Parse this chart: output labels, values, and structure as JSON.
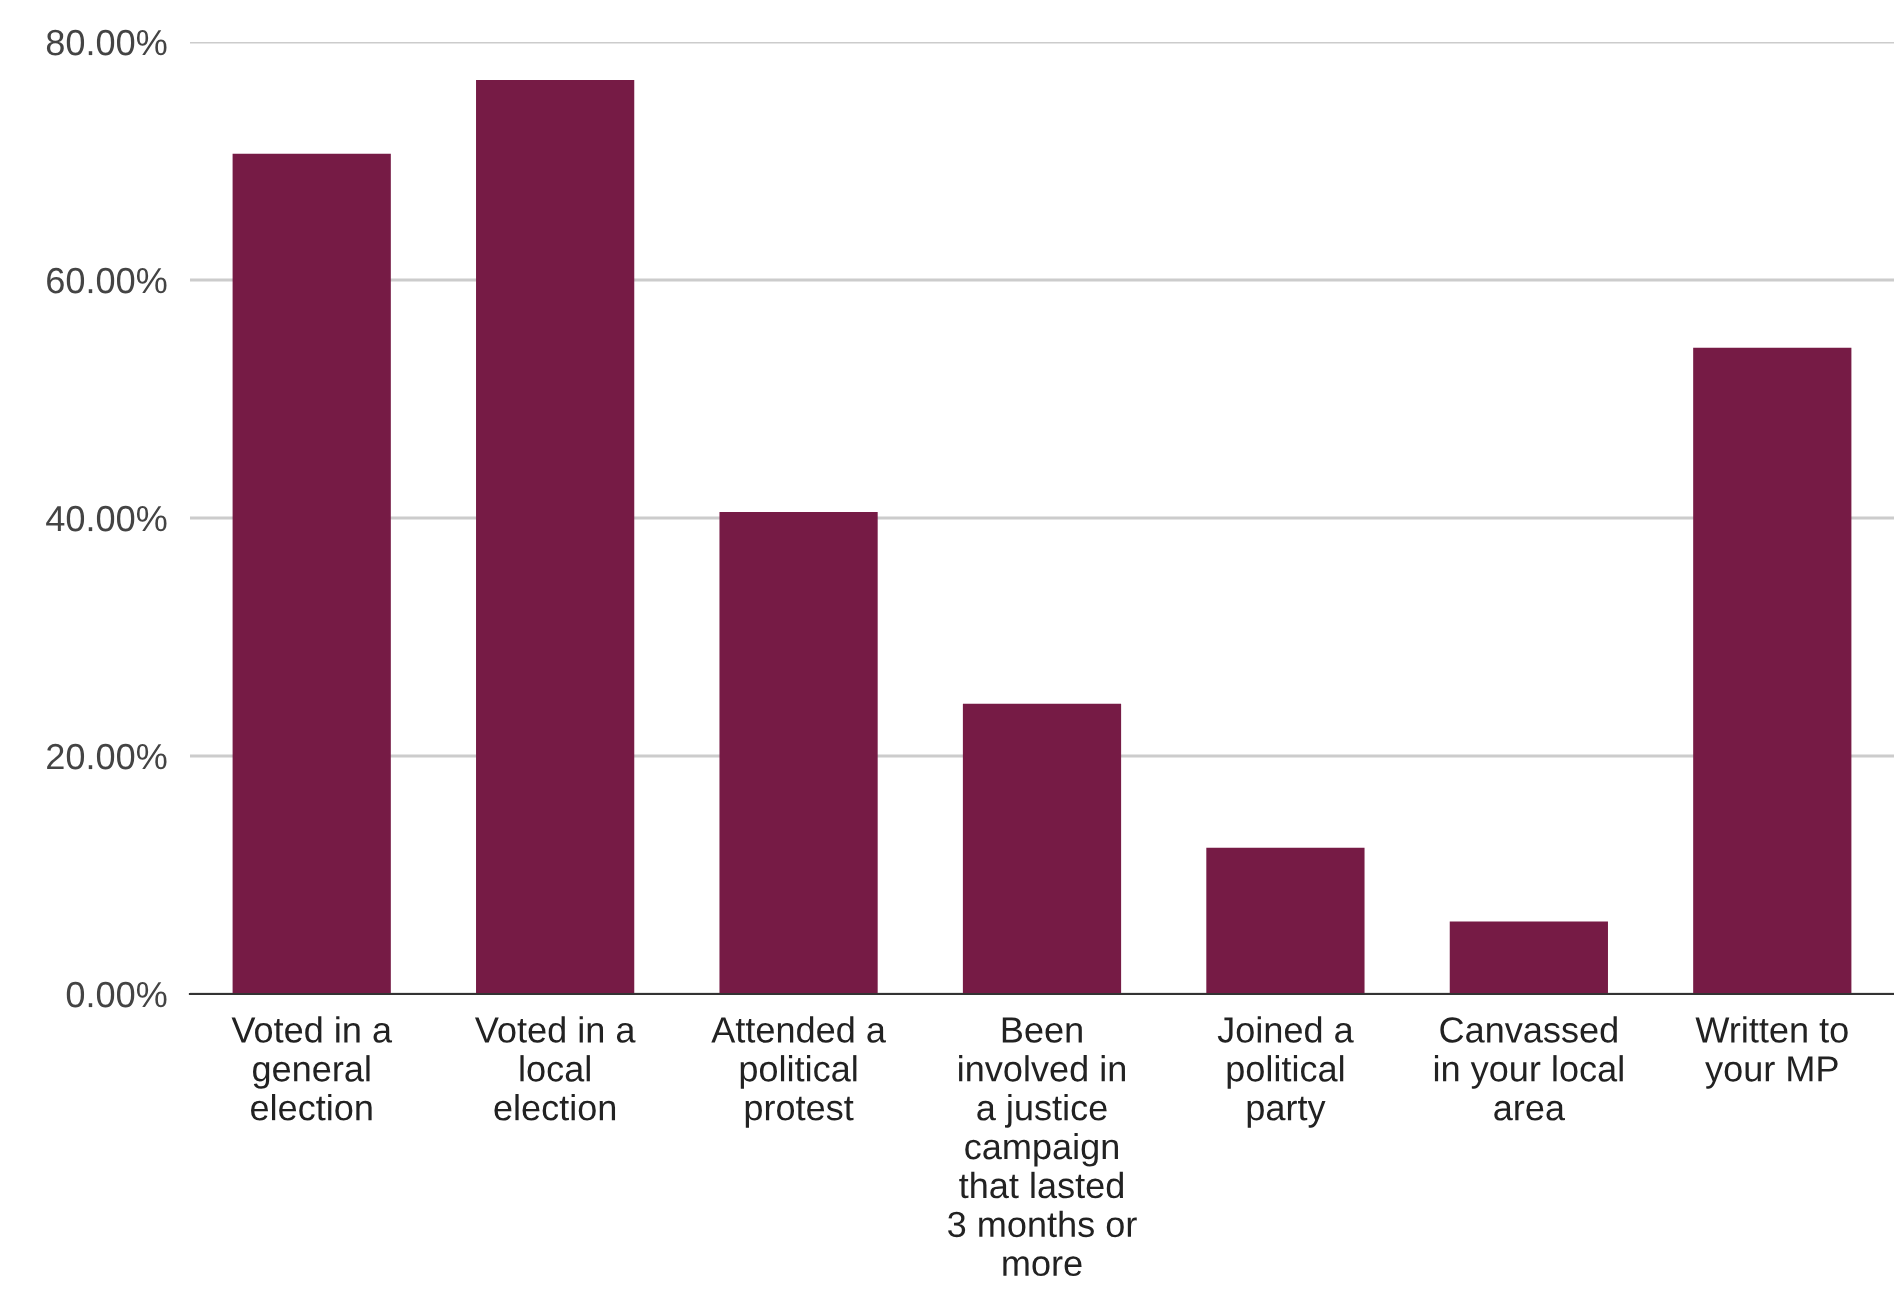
{
  "chart_data": {
    "type": "bar",
    "categories": [
      "Voted in a\ngeneral\nelection",
      "Voted in a\nlocal\nelection",
      "Attended a\npolitical\nprotest",
      "Been\ninvolved in\na justice\ncampaign\nthat lasted\n3 months or\nmore",
      "Joined a\npolitical\nparty",
      "Canvassed\nin your local\narea",
      "Written to\nyour MP"
    ],
    "values": [
      70.6,
      76.8,
      40.5,
      24.4,
      12.3,
      6.1,
      54.3
    ],
    "color": "#761b45",
    "ylim": [
      0,
      80
    ],
    "yticks": [
      {
        "value": 0,
        "label": "0.00%"
      },
      {
        "value": 20,
        "label": "20.00%"
      },
      {
        "value": 40,
        "label": "40.00%"
      },
      {
        "value": 60,
        "label": "60.00%"
      },
      {
        "value": 80,
        "label": "80.00%"
      }
    ],
    "grid": "y"
  }
}
